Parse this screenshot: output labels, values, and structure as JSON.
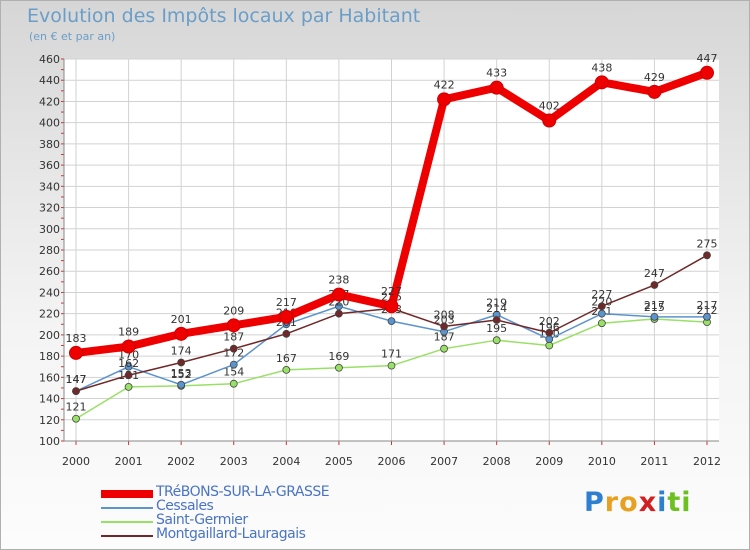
{
  "chart_data": {
    "type": "line",
    "title": "Evolution des Impôts locaux par Habitant",
    "subtitle": "(en € et par an)",
    "categories": [
      "2000",
      "2001",
      "2002",
      "2003",
      "2004",
      "2005",
      "2006",
      "2007",
      "2008",
      "2009",
      "2010",
      "2011",
      "2012"
    ],
    "ylim": [
      100,
      460
    ],
    "yticks": [
      100,
      120,
      140,
      160,
      180,
      200,
      220,
      240,
      260,
      280,
      300,
      320,
      340,
      360,
      380,
      400,
      420,
      440,
      460
    ],
    "grid": true,
    "series": [
      {
        "name": "TRéBONS-SUR-LA-GRASSE",
        "color": "#ee0000",
        "values": [
          183,
          189,
          201,
          209,
          217,
          238,
          227,
          422,
          433,
          402,
          438,
          429,
          447
        ]
      },
      {
        "name": "Cessales",
        "color": "#5b94cc",
        "values": [
          147,
          170,
          153,
          172,
          210,
          227,
          213,
          203,
          219,
          196,
          220,
          217,
          217
        ]
      },
      {
        "name": "Saint-Germier",
        "color": "#99e066",
        "values": [
          121,
          151,
          152,
          154,
          167,
          169,
          171,
          187,
          195,
          190,
          211,
          215,
          212
        ]
      },
      {
        "name": "Montgaillard-Lauragais",
        "color": "#702828",
        "values": [
          147,
          162,
          174,
          187,
          201,
          220,
          225,
          208,
          214,
          202,
          227,
          247,
          275
        ]
      }
    ]
  },
  "logo": {
    "letters": [
      "P",
      "r",
      "o",
      "x",
      "i",
      "t",
      "i"
    ],
    "colors": [
      "#2e7fd0",
      "#e8a020",
      "#e8a020",
      "#d02020",
      "#2e7fd0",
      "#6cc020",
      "#6cc020"
    ]
  }
}
